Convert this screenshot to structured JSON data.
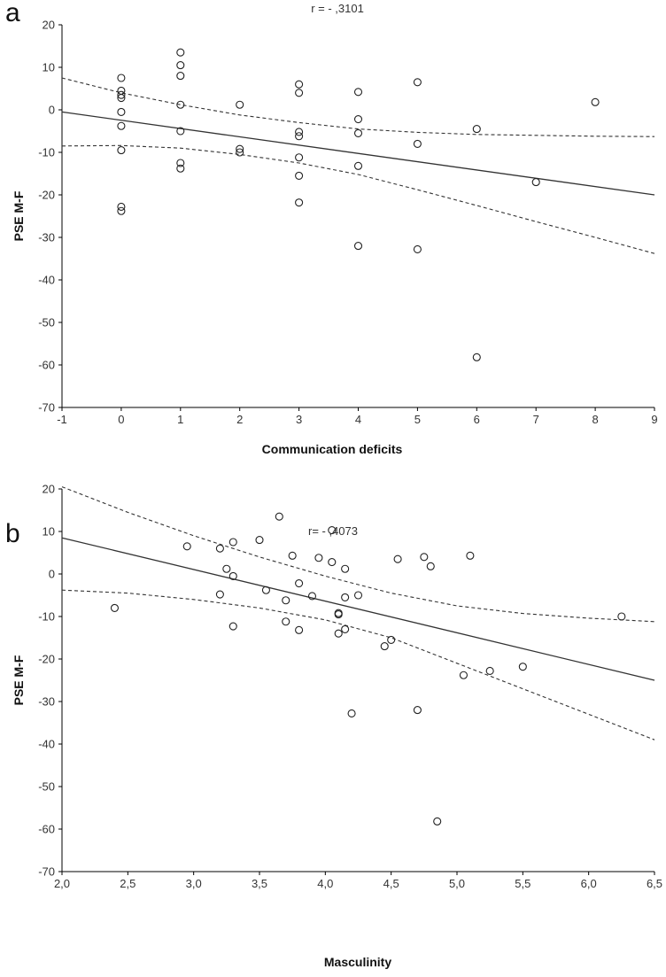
{
  "chart_data": [
    {
      "type": "scatter",
      "panel": "a",
      "title": "r = - ,3101",
      "xlabel": "Communication  deficits",
      "ylabel": "PSE M-F",
      "xlim": [
        -1,
        9
      ],
      "ylim": [
        -70,
        20
      ],
      "xticks": [
        -1,
        0,
        1,
        2,
        3,
        4,
        5,
        6,
        7,
        8,
        9
      ],
      "xtick_labels": [
        "-1",
        "0",
        "1",
        "2",
        "3",
        "4",
        "5",
        "6",
        "7",
        "8",
        "9"
      ],
      "yticks": [
        20,
        10,
        0,
        -10,
        -20,
        -30,
        -40,
        -50,
        -60,
        -70
      ],
      "ytick_labels": [
        "20",
        "10",
        "0",
        "-10",
        "-20",
        "-30",
        "-40",
        "-50",
        "-60",
        "-70"
      ],
      "points": [
        {
          "x": 0,
          "y": 7.5
        },
        {
          "x": 0,
          "y": 4.5
        },
        {
          "x": 0,
          "y": 3.5
        },
        {
          "x": 0,
          "y": 2.8
        },
        {
          "x": 0,
          "y": -0.5
        },
        {
          "x": 0,
          "y": -3.8
        },
        {
          "x": 0,
          "y": -9.5
        },
        {
          "x": 0,
          "y": -22.8
        },
        {
          "x": 0,
          "y": -23.8
        },
        {
          "x": 1,
          "y": 13.5
        },
        {
          "x": 1,
          "y": 10.5
        },
        {
          "x": 1,
          "y": 8.0
        },
        {
          "x": 1,
          "y": 1.2
        },
        {
          "x": 1,
          "y": -5.0
        },
        {
          "x": 1,
          "y": -12.5
        },
        {
          "x": 1,
          "y": -13.8
        },
        {
          "x": 2,
          "y": 1.2
        },
        {
          "x": 2,
          "y": -9.2
        },
        {
          "x": 2,
          "y": -10.0
        },
        {
          "x": 3,
          "y": 6.0
        },
        {
          "x": 3,
          "y": 4.0
        },
        {
          "x": 3,
          "y": -5.2
        },
        {
          "x": 3,
          "y": -6.2
        },
        {
          "x": 3,
          "y": -11.2
        },
        {
          "x": 3,
          "y": -15.5
        },
        {
          "x": 3,
          "y": -21.8
        },
        {
          "x": 4,
          "y": 4.2
        },
        {
          "x": 4,
          "y": -2.2
        },
        {
          "x": 4,
          "y": -5.5
        },
        {
          "x": 4,
          "y": -13.2
        },
        {
          "x": 4,
          "y": -32.0
        },
        {
          "x": 5,
          "y": 6.5
        },
        {
          "x": 5,
          "y": -8.0
        },
        {
          "x": 5,
          "y": -32.8
        },
        {
          "x": 6,
          "y": -4.5
        },
        {
          "x": 6,
          "y": -58.2
        },
        {
          "x": 7,
          "y": -17.0
        },
        {
          "x": 8,
          "y": 1.8
        }
      ],
      "fit_line": {
        "x": [
          -1,
          9
        ],
        "y": [
          -0.5,
          -20.0
        ]
      },
      "ci_upper": {
        "x": [
          -1,
          0,
          1,
          2,
          3,
          4,
          5,
          6,
          7,
          8,
          9
        ],
        "y": [
          7.5,
          4.0,
          1.2,
          -1.2,
          -3.0,
          -4.5,
          -5.3,
          -5.8,
          -6.0,
          -6.2,
          -6.3
        ]
      },
      "ci_lower": {
        "x": [
          -1,
          0,
          1,
          2,
          3,
          4,
          5,
          6,
          7,
          8,
          9
        ],
        "y": [
          -8.5,
          -8.4,
          -9.0,
          -10.5,
          -12.5,
          -15.2,
          -18.8,
          -22.5,
          -26.3,
          -30.0,
          -33.8
        ]
      }
    },
    {
      "type": "scatter",
      "panel": "b",
      "title": "r= - ,4073",
      "xlabel": "Masculinity",
      "ylabel": "PSE M-F",
      "xlim": [
        2.0,
        6.5
      ],
      "ylim": [
        -70,
        20
      ],
      "xticks": [
        2.0,
        2.5,
        3.0,
        3.5,
        4.0,
        4.5,
        5.0,
        5.5,
        6.0,
        6.5
      ],
      "xtick_labels": [
        "2,0",
        "2,5",
        "3,0",
        "3,5",
        "4,0",
        "4,5",
        "5,0",
        "5,5",
        "6,0",
        "6,5"
      ],
      "yticks": [
        20,
        10,
        0,
        -10,
        -20,
        -30,
        -40,
        -50,
        -60,
        -70
      ],
      "ytick_labels": [
        "20",
        "10",
        "0",
        "-10",
        "-20",
        "-30",
        "-40",
        "-50",
        "-60",
        "-70"
      ],
      "points": [
        {
          "x": 2.4,
          "y": -8.0
        },
        {
          "x": 2.95,
          "y": 6.5
        },
        {
          "x": 3.2,
          "y": 6.0
        },
        {
          "x": 3.2,
          "y": -4.8
        },
        {
          "x": 3.25,
          "y": 1.2
        },
        {
          "x": 3.3,
          "y": 7.5
        },
        {
          "x": 3.3,
          "y": -0.5
        },
        {
          "x": 3.3,
          "y": -12.3
        },
        {
          "x": 3.5,
          "y": 8.0
        },
        {
          "x": 3.55,
          "y": -3.8
        },
        {
          "x": 3.65,
          "y": 13.5
        },
        {
          "x": 3.7,
          "y": -6.2
        },
        {
          "x": 3.7,
          "y": -11.2
        },
        {
          "x": 3.75,
          "y": 4.3
        },
        {
          "x": 3.8,
          "y": -2.2
        },
        {
          "x": 3.8,
          "y": -13.2
        },
        {
          "x": 3.9,
          "y": -5.2
        },
        {
          "x": 3.95,
          "y": 3.8
        },
        {
          "x": 4.05,
          "y": 10.3
        },
        {
          "x": 4.05,
          "y": 2.8
        },
        {
          "x": 4.1,
          "y": -9.2
        },
        {
          "x": 4.1,
          "y": -9.5
        },
        {
          "x": 4.1,
          "y": -14.0
        },
        {
          "x": 4.15,
          "y": 1.2
        },
        {
          "x": 4.15,
          "y": -5.5
        },
        {
          "x": 4.15,
          "y": -13.0
        },
        {
          "x": 4.2,
          "y": -32.8
        },
        {
          "x": 4.25,
          "y": -5.0
        },
        {
          "x": 4.45,
          "y": -17.0
        },
        {
          "x": 4.5,
          "y": -15.5
        },
        {
          "x": 4.55,
          "y": 3.5
        },
        {
          "x": 4.7,
          "y": -32.0
        },
        {
          "x": 4.75,
          "y": 4.0
        },
        {
          "x": 4.8,
          "y": 1.8
        },
        {
          "x": 4.85,
          "y": -58.2
        },
        {
          "x": 5.05,
          "y": -23.8
        },
        {
          "x": 5.1,
          "y": 4.3
        },
        {
          "x": 5.25,
          "y": -22.8
        },
        {
          "x": 5.5,
          "y": -21.8
        },
        {
          "x": 6.25,
          "y": -10.0
        }
      ],
      "fit_line": {
        "x": [
          2.0,
          6.5
        ],
        "y": [
          8.5,
          -25.0
        ]
      },
      "ci_upper": {
        "x": [
          2.0,
          2.5,
          3.0,
          3.5,
          4.0,
          4.5,
          5.0,
          5.5,
          6.0,
          6.5
        ],
        "y": [
          20.5,
          14.5,
          9.0,
          4.0,
          -0.5,
          -4.5,
          -7.5,
          -9.3,
          -10.4,
          -11.2
        ]
      },
      "ci_lower": {
        "x": [
          2.0,
          2.5,
          3.0,
          3.5,
          4.0,
          4.5,
          5.0,
          5.5,
          6.0,
          6.5
        ],
        "y": [
          -3.8,
          -4.5,
          -6.0,
          -8.0,
          -10.8,
          -15.0,
          -21.0,
          -27.0,
          -33.0,
          -39.0
        ]
      }
    }
  ]
}
